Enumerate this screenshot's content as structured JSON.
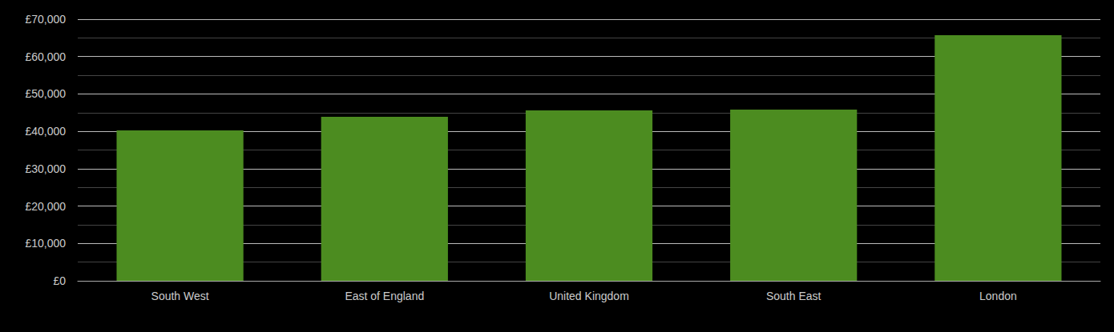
{
  "chart_data": {
    "type": "bar",
    "categories": [
      "South West",
      "East of England",
      "United Kingdom",
      "South East",
      "London"
    ],
    "values": [
      40250,
      43900,
      45600,
      45800,
      65700
    ],
    "color": "#4c8c20",
    "ylim": [
      0,
      70000
    ],
    "yticks": [
      {
        "value": 0,
        "label": "£0"
      },
      {
        "value": 10000,
        "label": "£10,000"
      },
      {
        "value": 20000,
        "label": "£20,000"
      },
      {
        "value": 30000,
        "label": "£30,000"
      },
      {
        "value": 40000,
        "label": "£40,000"
      },
      {
        "value": 50000,
        "label": "£50,000"
      },
      {
        "value": 60000,
        "label": "£60,000"
      },
      {
        "value": 70000,
        "label": "£70,000"
      }
    ],
    "grid": true
  }
}
